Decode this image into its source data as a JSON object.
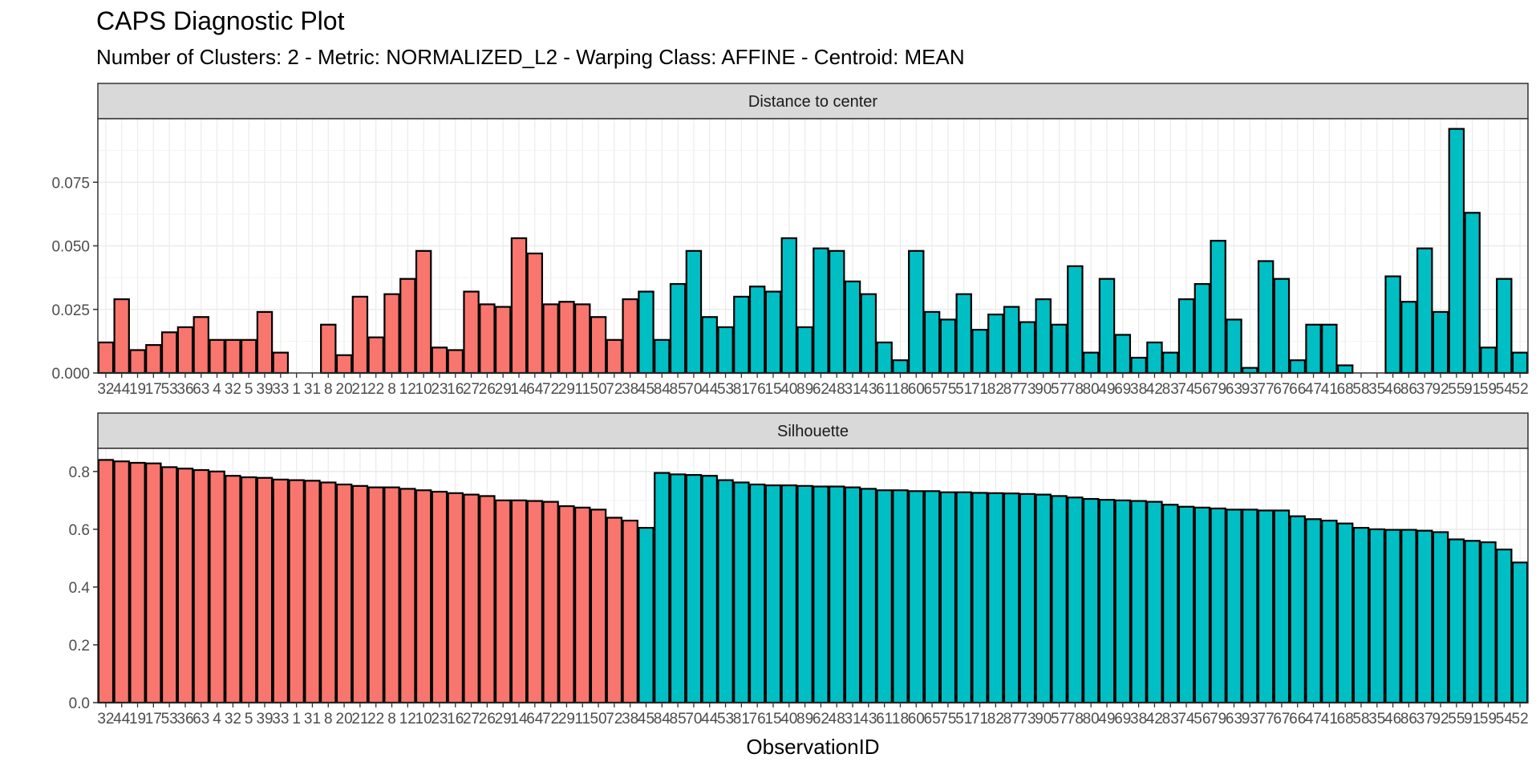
{
  "title": "CAPS Diagnostic Plot",
  "subtitle": "Number of Clusters: 2 - Metric: NORMALIZED_L2 - Warping Class: AFFINE - Centroid: MEAN",
  "colors": {
    "cluster1": "#F8766D",
    "cluster2": "#00BFC4"
  },
  "chart_data": {
    "type": "bar",
    "xlabel": "ObservationID",
    "grid": true,
    "categories": [
      "32",
      "44",
      "19",
      "17",
      "53",
      "36",
      "63",
      "4",
      "32",
      "5",
      "39",
      "33",
      "1",
      "31",
      "8",
      "20",
      "21",
      "22",
      "8",
      "12",
      "10",
      "23",
      "16",
      "27",
      "26",
      "29",
      "14",
      "64",
      "72",
      "29",
      "11",
      "50",
      "72",
      "38",
      "45",
      "84",
      "85",
      "70",
      "44",
      "53",
      "81",
      "76",
      "15",
      "40",
      "89",
      "62",
      "48",
      "31",
      "43",
      "61",
      "18",
      "60",
      "65",
      "75",
      "51",
      "71",
      "82",
      "87",
      "73",
      "90",
      "57",
      "78",
      "80",
      "49",
      "69",
      "38",
      "42",
      "83",
      "74",
      "56",
      "79",
      "63",
      "93",
      "77",
      "67",
      "66",
      "47",
      "41",
      "68",
      "58",
      "35",
      "46",
      "86",
      "37",
      "92",
      "55",
      "91",
      "59",
      "54",
      "52"
    ],
    "cluster": [
      1,
      1,
      1,
      1,
      1,
      1,
      1,
      1,
      1,
      1,
      1,
      1,
      1,
      1,
      1,
      1,
      1,
      1,
      1,
      1,
      1,
      1,
      1,
      1,
      1,
      1,
      1,
      1,
      1,
      1,
      1,
      1,
      1,
      1,
      2,
      2,
      2,
      2,
      2,
      2,
      2,
      2,
      2,
      2,
      2,
      2,
      2,
      2,
      2,
      2,
      2,
      2,
      2,
      2,
      2,
      2,
      2,
      2,
      2,
      2,
      2,
      2,
      2,
      2,
      2,
      2,
      2,
      2,
      2,
      2,
      2,
      2,
      2,
      2,
      2,
      2,
      2,
      2,
      2,
      2,
      2,
      2,
      2,
      2,
      2,
      2,
      2,
      2,
      2,
      2
    ],
    "panels": [
      {
        "strip": "Distance to center",
        "ylim": [
          0,
          0.1
        ],
        "yticks": [
          0.0,
          0.025,
          0.05,
          0.075
        ],
        "yticklabels": [
          "0.000",
          "0.025",
          "0.050",
          "0.075"
        ],
        "values": [
          0.012,
          0.029,
          0.009,
          0.011,
          0.016,
          0.018,
          0.022,
          0.013,
          0.013,
          0.013,
          0.024,
          0.008,
          0.0,
          0.0,
          0.019,
          0.007,
          0.03,
          0.014,
          0.031,
          0.037,
          0.048,
          0.01,
          0.009,
          0.032,
          0.027,
          0.026,
          0.053,
          0.047,
          0.027,
          0.028,
          0.027,
          0.022,
          0.013,
          0.029,
          0.032,
          0.013,
          0.035,
          0.048,
          0.022,
          0.018,
          0.03,
          0.034,
          0.032,
          0.053,
          0.018,
          0.049,
          0.048,
          0.036,
          0.031,
          0.012,
          0.005,
          0.048,
          0.024,
          0.021,
          0.031,
          0.017,
          0.023,
          0.026,
          0.02,
          0.029,
          0.019,
          0.042,
          0.008,
          0.037,
          0.015,
          0.006,
          0.012,
          0.008,
          0.029,
          0.035,
          0.052,
          0.021,
          0.002,
          0.044,
          0.037,
          0.005,
          0.019,
          0.019,
          0.003,
          0.0,
          0.0,
          0.038,
          0.028,
          0.049,
          0.024,
          0.096,
          0.063,
          0.01,
          0.037,
          0.008
        ]
      },
      {
        "strip": "Silhouette",
        "ylim": [
          0,
          0.88
        ],
        "yticks": [
          0.0,
          0.2,
          0.4,
          0.6,
          0.8
        ],
        "yticklabels": [
          "0.0",
          "0.2",
          "0.4",
          "0.6",
          "0.8"
        ],
        "values": [
          0.84,
          0.835,
          0.83,
          0.828,
          0.815,
          0.81,
          0.805,
          0.8,
          0.785,
          0.78,
          0.778,
          0.772,
          0.77,
          0.768,
          0.762,
          0.755,
          0.75,
          0.745,
          0.745,
          0.74,
          0.735,
          0.73,
          0.725,
          0.72,
          0.715,
          0.7,
          0.7,
          0.698,
          0.695,
          0.68,
          0.675,
          0.668,
          0.64,
          0.63,
          0.605,
          0.795,
          0.79,
          0.788,
          0.785,
          0.77,
          0.762,
          0.755,
          0.752,
          0.752,
          0.75,
          0.748,
          0.748,
          0.745,
          0.74,
          0.735,
          0.735,
          0.732,
          0.732,
          0.728,
          0.728,
          0.726,
          0.725,
          0.724,
          0.722,
          0.72,
          0.715,
          0.71,
          0.705,
          0.702,
          0.7,
          0.698,
          0.695,
          0.685,
          0.678,
          0.675,
          0.672,
          0.668,
          0.668,
          0.665,
          0.665,
          0.645,
          0.635,
          0.63,
          0.62,
          0.605,
          0.6,
          0.598,
          0.598,
          0.595,
          0.59,
          0.565,
          0.56,
          0.555,
          0.53,
          0.485
        ]
      }
    ]
  }
}
